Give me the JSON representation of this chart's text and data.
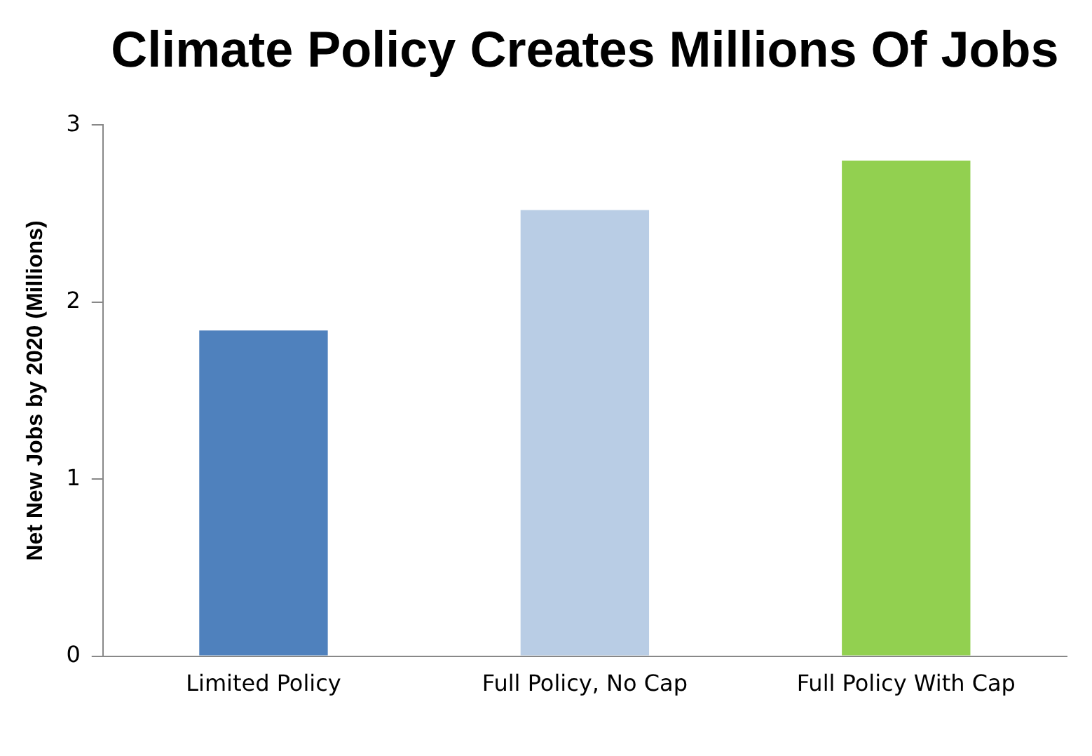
{
  "chart_data": {
    "type": "bar",
    "title": "Climate Policy Creates Millions Of Jobs",
    "ylabel": "Net New Jobs by 2020 (Millions)",
    "categories": [
      "Limited Policy",
      "Full Policy, No Cap",
      "Full Policy With Cap"
    ],
    "values": [
      1.84,
      2.52,
      2.8
    ],
    "colors": [
      "#4f81bd",
      "#b9cde5",
      "#92d050"
    ],
    "ylim": [
      0,
      3
    ],
    "yticks": [
      0,
      1,
      2,
      3
    ],
    "grid": false,
    "legend": false
  }
}
